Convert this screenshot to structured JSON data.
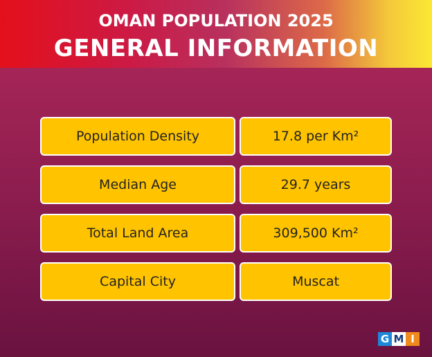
{
  "header": {
    "title": "OMAN POPULATION 2025",
    "subtitle": "GENERAL INFORMATION"
  },
  "table": {
    "rows": [
      [
        "Population Density",
        "17.8 per Km²"
      ],
      [
        "Median Age",
        "29.7 years"
      ],
      [
        "Total Land Area",
        "309,500 Km²"
      ],
      [
        "Capital City",
        "Muscat"
      ]
    ]
  },
  "logo": [
    "G",
    "M",
    "I"
  ]
}
